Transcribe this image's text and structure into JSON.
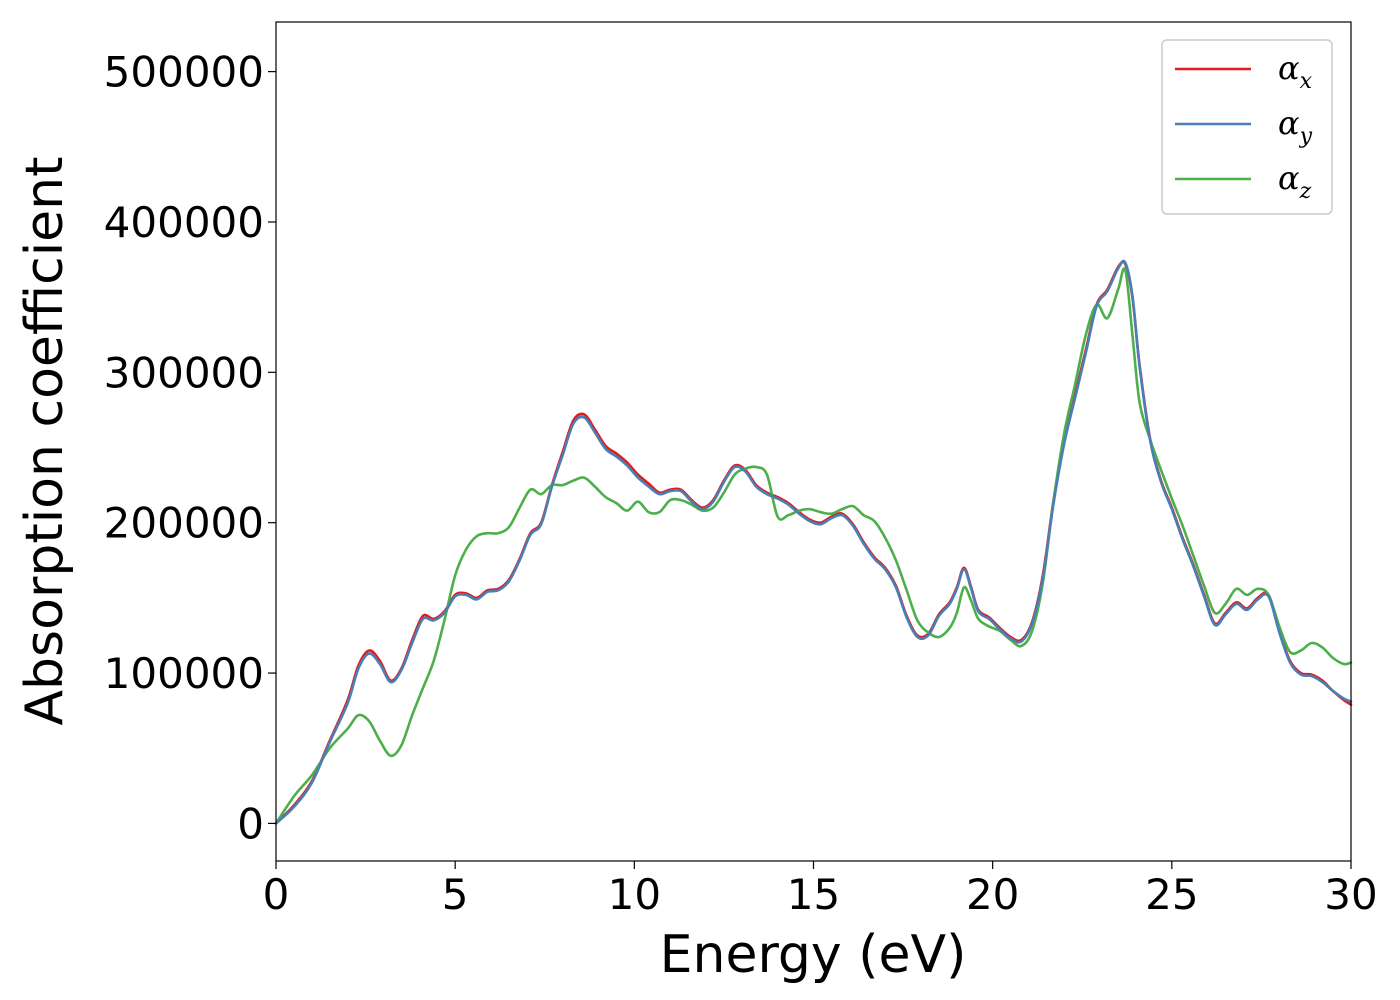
{
  "chart_data": {
    "type": "line",
    "xlabel": "Energy (eV)",
    "ylabel": "Absorption coefficient",
    "xlim": [
      0,
      30
    ],
    "ylim": [
      -25000,
      533000
    ],
    "xticks": [
      0,
      5,
      10,
      15,
      20,
      25,
      30
    ],
    "yticks": [
      0,
      100000,
      200000,
      300000,
      400000,
      500000
    ],
    "grid": false,
    "legend": "top-right",
    "series": [
      {
        "name": "α",
        "sub": "x",
        "color": "#e41a1c",
        "x": [
          0,
          0.5,
          1.0,
          1.5,
          2.0,
          2.3,
          2.6,
          2.9,
          3.2,
          3.5,
          3.8,
          4.1,
          4.4,
          4.7,
          5.0,
          5.3,
          5.6,
          5.9,
          6.2,
          6.5,
          6.8,
          7.1,
          7.4,
          7.7,
          8.0,
          8.3,
          8.6,
          8.9,
          9.2,
          9.5,
          9.8,
          10.1,
          10.4,
          10.7,
          11.0,
          11.3,
          11.6,
          11.9,
          12.2,
          12.5,
          12.8,
          13.1,
          13.4,
          13.7,
          14.0,
          14.3,
          14.6,
          14.9,
          15.2,
          15.5,
          15.8,
          16.1,
          16.4,
          16.7,
          17.0,
          17.3,
          17.6,
          17.9,
          18.2,
          18.5,
          18.8,
          19.0,
          19.2,
          19.4,
          19.6,
          19.9,
          20.2,
          20.5,
          20.8,
          21.1,
          21.4,
          21.7,
          22.0,
          22.3,
          22.6,
          22.9,
          23.2,
          23.5,
          23.7,
          23.9,
          24.1,
          24.4,
          24.7,
          25.0,
          25.3,
          25.6,
          25.9,
          26.2,
          26.5,
          26.8,
          27.1,
          27.4,
          27.7,
          28.0,
          28.3,
          28.6,
          28.9,
          29.2,
          29.5,
          29.8,
          30.0
        ],
        "y": [
          0,
          12000,
          28000,
          55000,
          82000,
          105000,
          115000,
          108000,
          95000,
          103000,
          122000,
          138000,
          136000,
          141000,
          152000,
          153000,
          150000,
          155000,
          156000,
          162000,
          176000,
          193000,
          200000,
          225000,
          247000,
          268000,
          272000,
          262000,
          251000,
          246000,
          240000,
          232000,
          226000,
          220000,
          222000,
          222000,
          215000,
          210000,
          215000,
          228000,
          238000,
          235000,
          225000,
          220000,
          217000,
          213000,
          207000,
          202000,
          200000,
          204000,
          206000,
          199000,
          187000,
          177000,
          170000,
          158000,
          138000,
          125000,
          126000,
          139000,
          147000,
          157000,
          170000,
          157000,
          142000,
          137000,
          130000,
          124000,
          122000,
          134000,
          165000,
          215000,
          255000,
          285000,
          315000,
          345000,
          355000,
          370000,
          372000,
          350000,
          305000,
          255000,
          228000,
          210000,
          190000,
          172000,
          152000,
          133000,
          140000,
          147000,
          143000,
          150000,
          152000,
          128000,
          108000,
          100000,
          99000,
          95000,
          88000,
          82000,
          79000
        ]
      },
      {
        "name": "α",
        "sub": "y",
        "color": "#4a7fb5",
        "x": [
          0,
          0.5,
          1.0,
          1.5,
          2.0,
          2.3,
          2.6,
          2.9,
          3.2,
          3.5,
          3.8,
          4.1,
          4.4,
          4.7,
          5.0,
          5.3,
          5.6,
          5.9,
          6.2,
          6.5,
          6.8,
          7.1,
          7.4,
          7.7,
          8.0,
          8.3,
          8.6,
          8.9,
          9.2,
          9.5,
          9.8,
          10.1,
          10.4,
          10.7,
          11.0,
          11.3,
          11.6,
          11.9,
          12.2,
          12.5,
          12.8,
          13.1,
          13.4,
          13.7,
          14.0,
          14.3,
          14.6,
          14.9,
          15.2,
          15.5,
          15.8,
          16.1,
          16.4,
          16.7,
          17.0,
          17.3,
          17.6,
          17.9,
          18.2,
          18.5,
          18.8,
          19.0,
          19.2,
          19.4,
          19.6,
          19.9,
          20.2,
          20.5,
          20.8,
          21.1,
          21.4,
          21.7,
          22.0,
          22.3,
          22.6,
          22.9,
          23.2,
          23.5,
          23.7,
          23.9,
          24.1,
          24.4,
          24.7,
          25.0,
          25.3,
          25.6,
          25.9,
          26.2,
          26.5,
          26.8,
          27.1,
          27.4,
          27.7,
          28.0,
          28.3,
          28.6,
          28.9,
          29.2,
          29.5,
          29.8,
          30.0
        ],
        "y": [
          0,
          11000,
          27000,
          54000,
          80000,
          103000,
          113000,
          106000,
          94000,
          102000,
          120000,
          136000,
          135000,
          140000,
          151000,
          152000,
          149000,
          154000,
          155000,
          161000,
          175000,
          192000,
          199000,
          224000,
          245000,
          266000,
          270000,
          260000,
          249000,
          244000,
          238000,
          230000,
          224000,
          219000,
          221000,
          221000,
          214000,
          209000,
          214000,
          227000,
          237000,
          234000,
          224000,
          219000,
          216000,
          212000,
          206000,
          201000,
          199000,
          203000,
          205000,
          198000,
          186000,
          176000,
          169000,
          157000,
          137000,
          124000,
          125000,
          138000,
          146000,
          156000,
          169000,
          156000,
          141000,
          136000,
          129000,
          123000,
          121000,
          133000,
          163000,
          213000,
          253000,
          283000,
          313000,
          344000,
          354000,
          369000,
          373000,
          351000,
          304000,
          254000,
          227000,
          209000,
          189000,
          171000,
          151000,
          132000,
          139000,
          146000,
          142000,
          149000,
          151000,
          127000,
          107000,
          99000,
          98000,
          94000,
          88000,
          83000,
          81000
        ]
      },
      {
        "name": "α",
        "sub": "z",
        "color": "#4daf4a",
        "x": [
          0,
          0.5,
          1.0,
          1.5,
          2.0,
          2.3,
          2.6,
          2.9,
          3.2,
          3.5,
          3.8,
          4.1,
          4.4,
          4.7,
          5.0,
          5.3,
          5.6,
          5.9,
          6.2,
          6.5,
          6.8,
          7.1,
          7.4,
          7.7,
          8.0,
          8.3,
          8.6,
          8.9,
          9.2,
          9.5,
          9.8,
          10.1,
          10.4,
          10.7,
          11.0,
          11.3,
          11.6,
          11.9,
          12.2,
          12.5,
          12.8,
          13.1,
          13.4,
          13.7,
          14.0,
          14.3,
          14.6,
          14.9,
          15.2,
          15.5,
          15.8,
          16.1,
          16.4,
          16.7,
          17.0,
          17.3,
          17.6,
          17.9,
          18.2,
          18.5,
          18.8,
          19.0,
          19.2,
          19.4,
          19.6,
          19.9,
          20.2,
          20.5,
          20.8,
          21.1,
          21.4,
          21.7,
          22.0,
          22.3,
          22.6,
          22.9,
          23.2,
          23.5,
          23.7,
          23.9,
          24.1,
          24.4,
          24.7,
          25.0,
          25.3,
          25.6,
          25.9,
          26.2,
          26.5,
          26.8,
          27.1,
          27.4,
          27.7,
          28.0,
          28.3,
          28.6,
          28.9,
          29.2,
          29.5,
          29.8,
          30.0
        ],
        "y": [
          0,
          18000,
          32000,
          50000,
          63000,
          72000,
          68000,
          55000,
          45000,
          52000,
          72000,
          90000,
          108000,
          135000,
          165000,
          182000,
          191000,
          193000,
          193000,
          197000,
          210000,
          222000,
          219000,
          225000,
          225000,
          228000,
          230000,
          224000,
          217000,
          213000,
          208000,
          214000,
          207000,
          207000,
          215000,
          215000,
          212000,
          208000,
          210000,
          220000,
          232000,
          236000,
          237000,
          232000,
          204000,
          205000,
          208000,
          209000,
          207000,
          206000,
          209000,
          211000,
          205000,
          201000,
          190000,
          175000,
          155000,
          135000,
          127000,
          124000,
          130000,
          140000,
          157000,
          148000,
          136000,
          131000,
          128000,
          122000,
          118000,
          128000,
          160000,
          215000,
          260000,
          292000,
          325000,
          345000,
          336000,
          355000,
          368000,
          325000,
          280000,
          255000,
          235000,
          216000,
          198000,
          178000,
          158000,
          140000,
          146000,
          156000,
          152000,
          156000,
          152000,
          131000,
          114000,
          115000,
          120000,
          117000,
          110000,
          106000,
          107000
        ]
      }
    ]
  }
}
